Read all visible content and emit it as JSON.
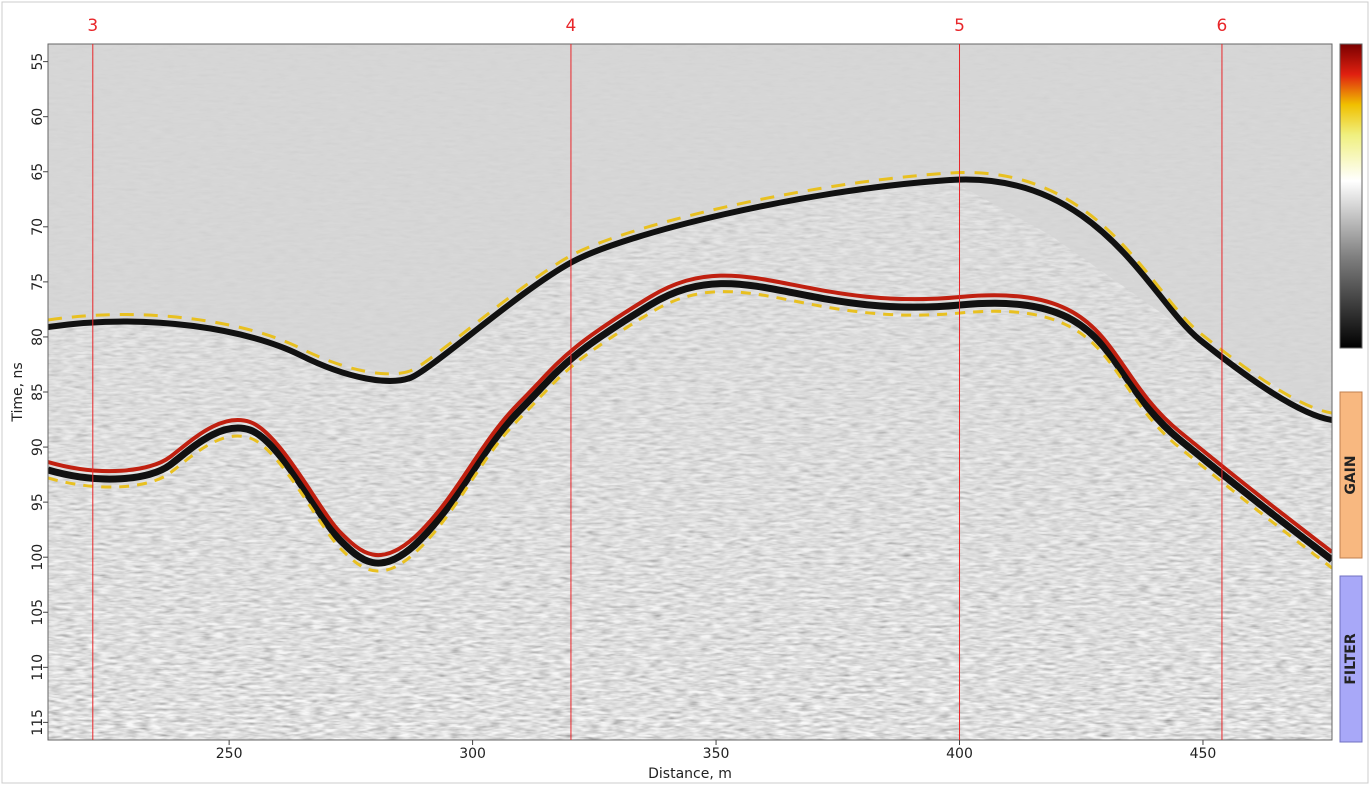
{
  "chart_data": {
    "type": "radargram",
    "xlabel": "Distance, m",
    "ylabel": "Time, ns",
    "xlim": [
      212.8,
      476.5
    ],
    "xticks": [
      250,
      300,
      350,
      400,
      450
    ],
    "ylim": [
      116.6,
      53.4
    ],
    "yticks": [
      55,
      60,
      65,
      70,
      75,
      80,
      85,
      90,
      95,
      100,
      105,
      110,
      115
    ],
    "marker_color": "#e8262a",
    "markers": [
      {
        "label": "3",
        "x": 222.0
      },
      {
        "label": "4",
        "x": 320.2
      },
      {
        "label": "5",
        "x": 400.0
      },
      {
        "label": "6",
        "x": 453.9
      }
    ]
  },
  "controls": {
    "gain": "GAIN",
    "filter": "FILTER"
  }
}
